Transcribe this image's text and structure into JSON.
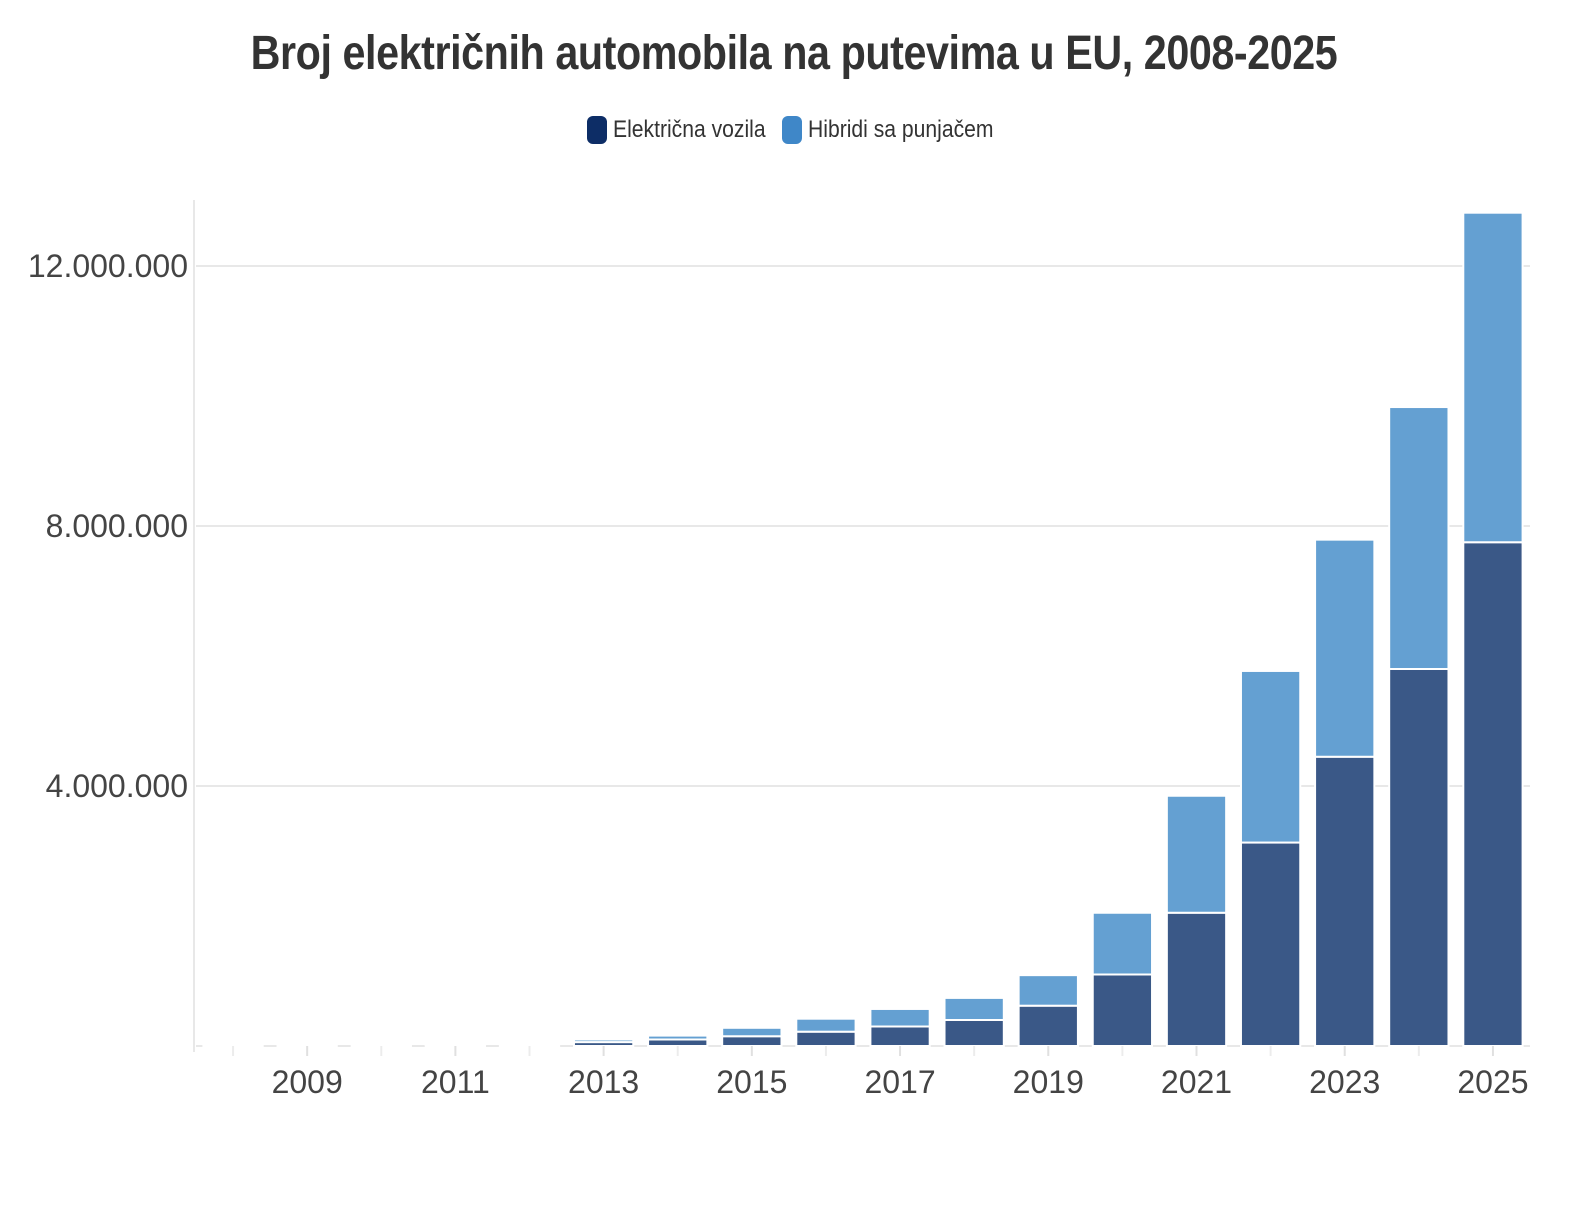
{
  "chart_data": {
    "type": "bar",
    "stacked": true,
    "title": "Broj električnih automobila na putevima u EU, 2008-2025",
    "xlabel": "",
    "ylabel": "",
    "categories": [
      "2008",
      "2009",
      "2010",
      "2011",
      "2012",
      "2013",
      "2014",
      "2015",
      "2016",
      "2017",
      "2018",
      "2019",
      "2020",
      "2021",
      "2022",
      "2023",
      "2024",
      "2025"
    ],
    "x_tick_labels": [
      "2009",
      "2011",
      "2013",
      "2015",
      "2017",
      "2019",
      "2021",
      "2023",
      "2025"
    ],
    "y_tick_values": [
      4000000,
      8000000,
      12000000
    ],
    "y_tick_labels": [
      "4.000.000",
      "8.000.000",
      "12.000.000"
    ],
    "ylim": [
      0,
      13000000
    ],
    "grid": true,
    "legend_position": "top-center",
    "series": [
      {
        "name": "Električna vozila",
        "color": "#0d2d66",
        "fill": "#3a5887",
        "values": [
          5000,
          7000,
          9000,
          15000,
          30000,
          60000,
          100000,
          150000,
          220000,
          300000,
          400000,
          620000,
          1100000,
          2050000,
          3130000,
          4450000,
          5800000,
          7750000
        ]
      },
      {
        "name": "Hibridi sa punjačem",
        "color": "#3f87c8",
        "fill": "#64a0d2",
        "values": [
          0,
          0,
          0,
          3000,
          10000,
          40000,
          60000,
          130000,
          200000,
          270000,
          340000,
          470000,
          950000,
          1800000,
          2640000,
          3340000,
          4030000,
          5070000
        ]
      }
    ]
  }
}
